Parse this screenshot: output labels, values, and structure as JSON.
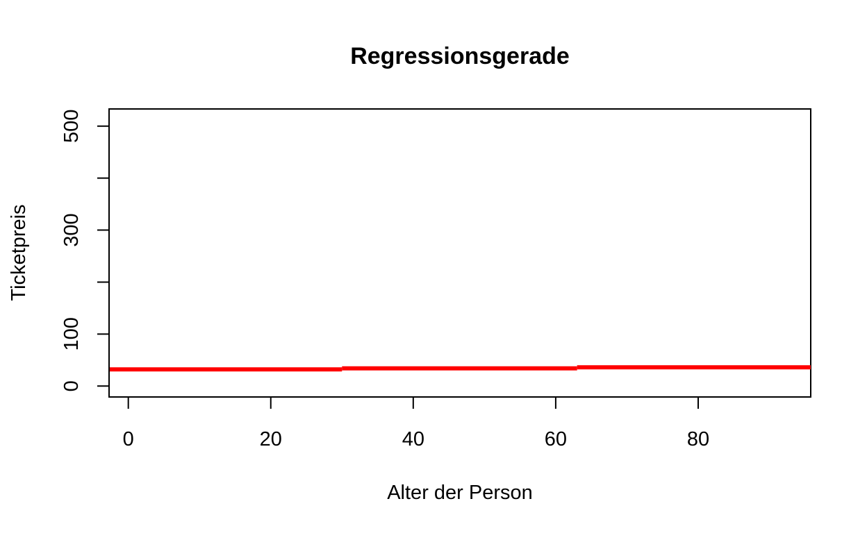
{
  "chart_data": {
    "type": "line",
    "title": "Regressionsgerade",
    "xlabel": "Alter der Person",
    "ylabel": "Ticketpreis",
    "xlim": [
      -2.7,
      95.8
    ],
    "ylim": [
      -21,
      533
    ],
    "x_ticks": [
      0,
      20,
      40,
      60,
      80
    ],
    "x_tick_labels": [
      "0",
      "20",
      "40",
      "60",
      "80"
    ],
    "y_ticks": [
      0,
      100,
      200,
      300,
      400,
      500
    ],
    "y_tick_labels": [
      "0",
      "100",
      "",
      "300",
      "",
      "500"
    ],
    "grid": false,
    "series": [
      {
        "color": "#ff0000",
        "segments": [
          {
            "x": [
              -2.7,
              30
            ],
            "y": [
              32,
              32
            ]
          },
          {
            "x": [
              30,
              63
            ],
            "y": [
              34,
              34
            ]
          },
          {
            "x": [
              63,
              95.8
            ],
            "y": [
              36,
              36
            ]
          }
        ]
      }
    ]
  }
}
